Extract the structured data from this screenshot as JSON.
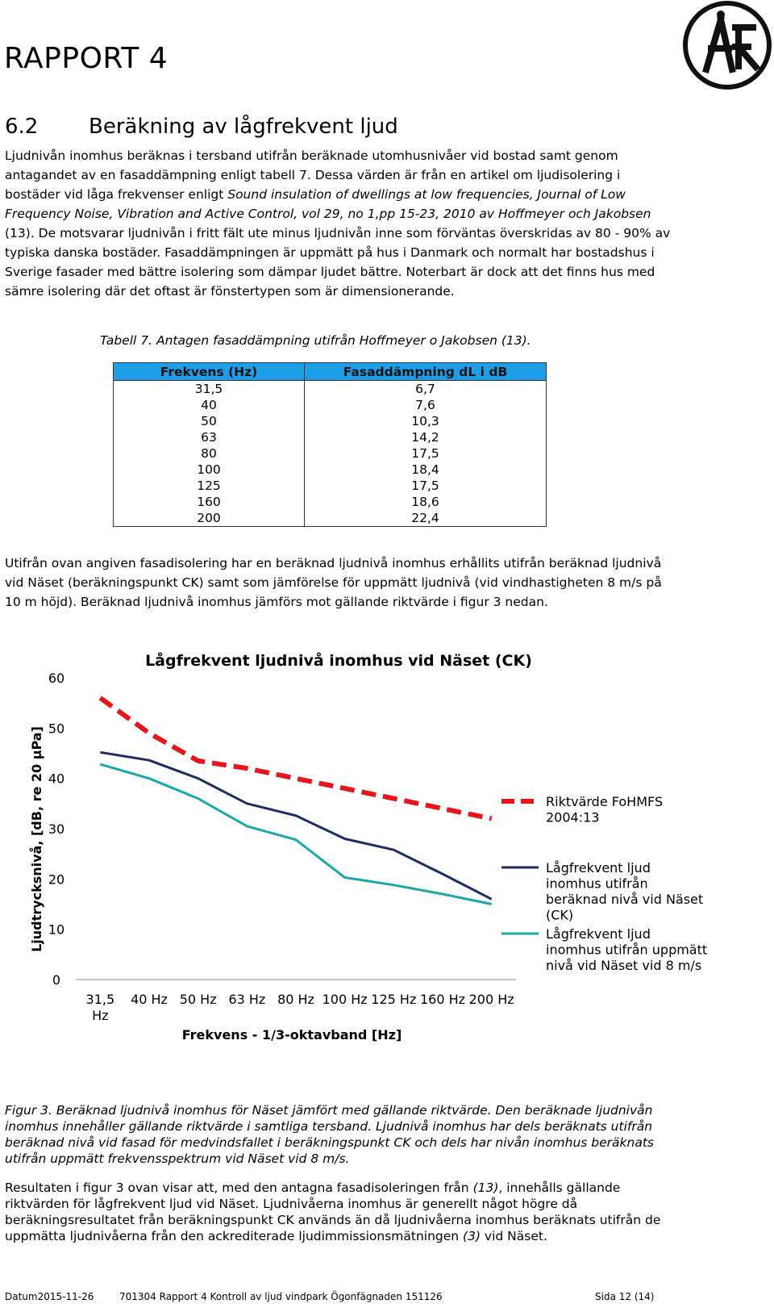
{
  "header": {
    "report_title": "RAPPORT 4",
    "section_number": "6.2",
    "section_title": "Beräkning av lågfrekvent ljud"
  },
  "intro": {
    "part1": "Ljudnivån inomhus beräknas i tersband utifrån beräknade utomhusnivåer vid bostad samt genom antagandet av en fasaddämpning enligt tabell 7. Dessa värden är från en artikel om ljudisolering i bostäder vid låga frekvenser enligt ",
    "italic": "Sound insulation of dwellings at low frequencies, Journal of Low Frequency Noise, Vibration and Active Control, vol 29, no 1,pp 15-23, 2010 av Hoffmeyer och Jakobsen",
    "part2": " (13). De motsvarar ljudnivån i fritt fält ute minus ljudnivån inne som förväntas överskridas av 80 - 90% av typiska danska bostäder. Fasaddämpningen är uppmätt på hus i Danmark och normalt har bostadshus i Sverige fasader med bättre isolering som dämpar ljudet bättre. Noterbart är dock att det finns hus med sämre isolering där det oftast är fönstertypen som är dimensionerande."
  },
  "table": {
    "caption": "Tabell 7. Antagen fasaddämpning utifrån Hoffmeyer o Jakobsen (13).",
    "headers": [
      "Frekvens (Hz)",
      "Fasaddämpning dL i dB"
    ],
    "rows": [
      [
        "31,5",
        "6,7"
      ],
      [
        "40",
        "7,6"
      ],
      [
        "50",
        "10,3"
      ],
      [
        "63",
        "14,2"
      ],
      [
        "80",
        "17,5"
      ],
      [
        "100",
        "18,4"
      ],
      [
        "125",
        "17,5"
      ],
      [
        "160",
        "18,6"
      ],
      [
        "200",
        "22,4"
      ]
    ],
    "header_color": "#1f9ee8"
  },
  "para2": "Utifrån ovan angiven fasadisolering har en beräknad ljudnivå inomhus erhållits utifrån beräknad ljudnivå vid Näset (beräkningspunkt CK) samt som jämförelse för uppmätt ljudnivå (vid vindhastigheten 8 m/s på 10 m höjd). Beräknad ljudnivå inomhus jämförs mot gällande riktvärde i figur 3 nedan.",
  "chart_data": {
    "type": "line",
    "title": "Lågfrekvent ljudnivå inomhus vid Näset (CK)",
    "xlabel": "Frekvens - 1/3-oktavband [Hz]",
    "ylabel": "Ljudtrycksnivå, [dB, re 20 µPa]",
    "categories": [
      "31,5 Hz",
      "40 Hz",
      "50 Hz",
      "63 Hz",
      "80 Hz",
      "100 Hz",
      "125 Hz",
      "160 Hz",
      "200 Hz"
    ],
    "yticks": [
      "0",
      "10",
      "20",
      "30",
      "40",
      "50",
      "60"
    ],
    "ylim": [
      0,
      60
    ],
    "grid": false,
    "legend_position": "right",
    "series": [
      {
        "name": "Riktvärde FoHMFS 2004:13",
        "values": [
          56,
          49,
          43.5,
          42,
          40,
          38,
          36,
          34,
          32
        ],
        "color": "#e8141a",
        "style": "dashed"
      },
      {
        "name": "Lågfrekvent ljud inomhus utifrån beräknad nivå vid Näset (CK)",
        "values": [
          45.2,
          43.6,
          40,
          35,
          32.6,
          28,
          25.8,
          21,
          16
        ],
        "color": "#1a2d66",
        "style": "solid"
      },
      {
        "name": "Lågfrekvent ljud inomhus utifrån uppmätt nivå vid Näset vid 8 m/s",
        "values": [
          42.8,
          40,
          36,
          30.5,
          27.8,
          20.3,
          18.8,
          17,
          15
        ],
        "color": "#1aa8a8",
        "style": "solid"
      }
    ]
  },
  "figure_caption": "Figur 3. Beräknad ljudnivå inomhus för Näset jämfört med gällande riktvärde. Den beräknade ljudnivån inomhus innehåller gällande riktvärde i samtliga tersband. Ljudnivå inomhus har dels beräknats utifrån beräknad nivå vid fasad för medvindsfallet i beräkningspunkt CK och dels har nivån inomhus beräknats utifrån uppmätt frekvensspektrum vid Näset vid 8 m/s.",
  "para3": {
    "part1": "Resultaten i figur 3 ovan visar att, med den antagna fasadisoleringen från ",
    "ref1": "(13)",
    "part2": ", innehålls gällande riktvärden för lågfrekvent ljud vid Näset. Ljudnivåerna inomhus är generellt något högre då beräkningsresultatet från beräkningspunkt CK används än då ljudnivåerna inomhus beräknats utifrån de uppmätta ljudnivåerna från den ackrediterade ljudimmissionsmätningen ",
    "ref2": "(3)",
    "part3": " vid Näset."
  },
  "footer": {
    "date": "Datum2015-11-26",
    "document": "701304 Rapport 4 Kontroll av ljud vindpark Ögonfägnaden 151126",
    "page": "Sida 12 (14)"
  }
}
